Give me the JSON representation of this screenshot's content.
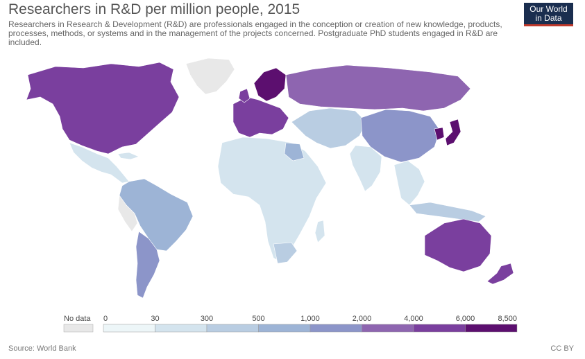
{
  "header": {
    "title": "Researchers in R&D per million people, 2015",
    "subtitle": "Researchers in Research & Development (R&D) are professionals engaged in the conception or creation of new knowledge, products, processes, methods, or systems and in the management of the projects concerned. Postgraduate PhD students engaged in R&D are included.",
    "logo_line1": "Our World",
    "logo_line2": "in Data"
  },
  "legend": {
    "no_data_label": "No data",
    "no_data_color": "#e8e8e8",
    "thresholds": [
      "0",
      "30",
      "300",
      "500",
      "1,000",
      "2,000",
      "4,000",
      "6,000",
      "8,500"
    ],
    "colors": [
      "#edf6f8",
      "#d4e4ee",
      "#b9cde2",
      "#9db4d6",
      "#8c95c9",
      "#8e65b0",
      "#7a3f9e",
      "#5c0f6f"
    ]
  },
  "map_colors": {
    "ocean": "#ffffff",
    "no_data": "#e8e8e8",
    "north_america": "#7a3f9e",
    "greenland": "#e8e8e8",
    "central_america": "#d4e4ee",
    "south_america_brazil": "#9db4d6",
    "argentina": "#8c95c9",
    "west_europe": "#7a3f9e",
    "nordics": "#5c0f6f",
    "russia": "#8e65b0",
    "central_asia": "#b9cde2",
    "china": "#8c95c9",
    "japan_korea": "#5c0f6f",
    "india": "#d4e4ee",
    "africa": "#d4e4ee",
    "australia": "#7a3f9e",
    "nz": "#7a3f9e"
  },
  "footer": {
    "source": "Source: World Bank",
    "license": "CC BY"
  }
}
